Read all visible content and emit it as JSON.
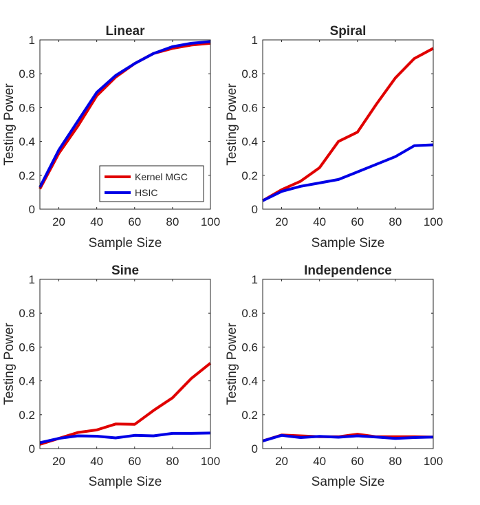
{
  "colors": {
    "kernel_mgc": "#e00000",
    "hsic": "#0000e6",
    "axis": "#262626"
  },
  "chart_data": [
    {
      "type": "line",
      "title": "Linear",
      "xlabel": "Sample Size",
      "ylabel": "Testing Power",
      "xlim": [
        10,
        100
      ],
      "ylim": [
        0,
        1
      ],
      "xticks": [
        20,
        40,
        60,
        80,
        100
      ],
      "yticks": [
        0,
        0.2,
        0.4,
        0.6,
        0.8,
        1
      ],
      "ytick_labels": [
        "0",
        "0.2",
        "0.4",
        "0.6",
        "0.8",
        "1"
      ],
      "x": [
        10,
        20,
        30,
        40,
        50,
        60,
        70,
        80,
        90,
        100
      ],
      "legend": {
        "location": "bottom-right",
        "entries": [
          "Kernel MGC",
          "HSIC"
        ]
      },
      "series": [
        {
          "name": "Kernel MGC",
          "color_key": "kernel_mgc",
          "values": [
            0.12,
            0.33,
            0.49,
            0.67,
            0.78,
            0.86,
            0.92,
            0.95,
            0.97,
            0.98
          ]
        },
        {
          "name": "HSIC",
          "color_key": "hsic",
          "values": [
            0.13,
            0.35,
            0.52,
            0.69,
            0.79,
            0.86,
            0.92,
            0.96,
            0.98,
            0.99
          ]
        }
      ]
    },
    {
      "type": "line",
      "title": "Spiral",
      "xlabel": "Sample Size",
      "ylabel": "Testing Power",
      "xlim": [
        10,
        100
      ],
      "ylim": [
        0,
        1
      ],
      "xticks": [
        20,
        40,
        60,
        80,
        100
      ],
      "yticks": [
        0,
        0.2,
        0.4,
        0.6,
        0.8,
        1
      ],
      "ytick_labels": [
        "0",
        "0.2",
        "0.4",
        "0.6",
        "0.8",
        "1"
      ],
      "x": [
        10,
        20,
        30,
        40,
        50,
        60,
        70,
        80,
        90,
        100
      ],
      "series": [
        {
          "name": "Kernel MGC",
          "color_key": "kernel_mgc",
          "values": [
            0.05,
            0.115,
            0.165,
            0.245,
            0.4,
            0.455,
            0.62,
            0.775,
            0.89,
            0.95
          ]
        },
        {
          "name": "HSIC",
          "color_key": "hsic",
          "values": [
            0.05,
            0.105,
            0.135,
            0.155,
            0.175,
            0.22,
            0.265,
            0.31,
            0.375,
            0.38
          ]
        }
      ]
    },
    {
      "type": "line",
      "title": "Sine",
      "xlabel": "Sample Size",
      "ylabel": "Testing Power",
      "xlim": [
        10,
        100
      ],
      "ylim": [
        0,
        1
      ],
      "xticks": [
        20,
        40,
        60,
        80,
        100
      ],
      "yticks": [
        0,
        0.2,
        0.4,
        0.6,
        0.8,
        1
      ],
      "ytick_labels": [
        "0",
        "0.2",
        "0.4",
        "0.6",
        "0.8",
        "1"
      ],
      "x": [
        10,
        20,
        30,
        40,
        50,
        60,
        70,
        80,
        90,
        100
      ],
      "series": [
        {
          "name": "Kernel MGC",
          "color_key": "kernel_mgc",
          "values": [
            0.025,
            0.06,
            0.095,
            0.11,
            0.145,
            0.143,
            0.225,
            0.3,
            0.415,
            0.505
          ]
        },
        {
          "name": "HSIC",
          "color_key": "hsic",
          "values": [
            0.035,
            0.06,
            0.075,
            0.073,
            0.063,
            0.078,
            0.075,
            0.09,
            0.09,
            0.092
          ]
        }
      ]
    },
    {
      "type": "line",
      "title": "Independence",
      "xlabel": "Sample Size",
      "ylabel": "Testing Power",
      "xlim": [
        10,
        100
      ],
      "ylim": [
        0,
        1
      ],
      "xticks": [
        20,
        40,
        60,
        80,
        100
      ],
      "yticks": [
        0,
        0.2,
        0.4,
        0.6,
        0.8,
        1
      ],
      "ytick_labels": [
        "0",
        "0.2",
        "0.4",
        "0.6",
        "0.8",
        "1"
      ],
      "x": [
        10,
        20,
        30,
        40,
        50,
        60,
        70,
        80,
        90,
        100
      ],
      "series": [
        {
          "name": "Kernel MGC",
          "color_key": "kernel_mgc",
          "values": [
            0.045,
            0.08,
            0.075,
            0.07,
            0.07,
            0.085,
            0.07,
            0.07,
            0.07,
            0.068
          ]
        },
        {
          "name": "HSIC",
          "color_key": "hsic",
          "values": [
            0.045,
            0.078,
            0.065,
            0.072,
            0.067,
            0.075,
            0.068,
            0.06,
            0.065,
            0.068
          ]
        }
      ]
    }
  ]
}
